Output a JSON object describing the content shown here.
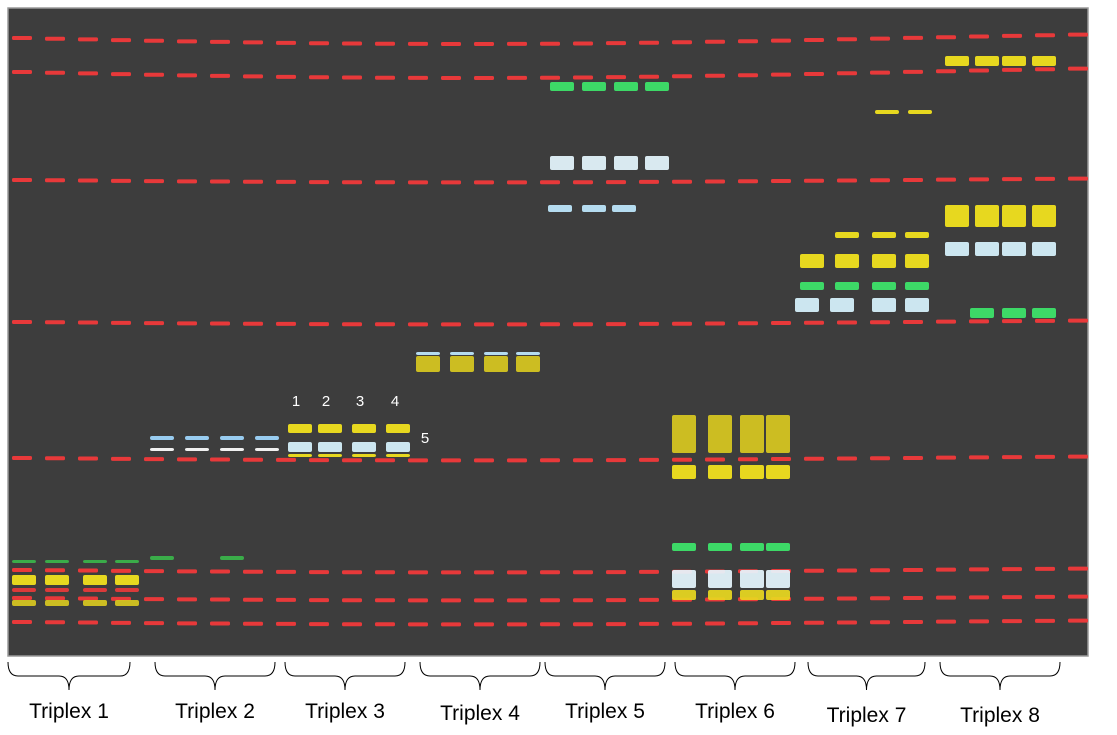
{
  "labels": [
    "Triplex 1",
    "Triplex 2",
    "Triplex 3",
    "Triplex 4",
    "Triplex 5",
    "Triplex 6",
    "Triplex 7",
    "Triplex 8"
  ],
  "lane_markers": [
    "1",
    "2",
    "3",
    "4",
    "5"
  ]
}
